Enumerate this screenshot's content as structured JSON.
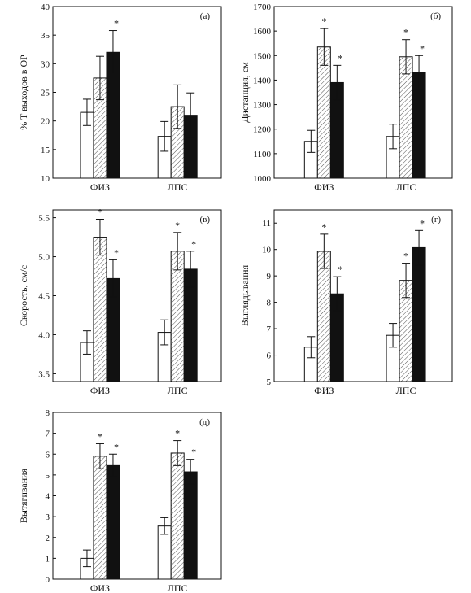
{
  "colors": {
    "series": [
      "#ffffff",
      "hatch",
      "#111111"
    ],
    "stroke": "#111111"
  },
  "chart_data": [
    {
      "type": "bar",
      "panel_label": "(а)",
      "ylabel": "% T выходов в ОР",
      "ylim": [
        10,
        40
      ],
      "yticks": [
        10,
        15,
        20,
        25,
        30,
        35,
        40
      ],
      "categories": [
        "ФИЗ",
        "ЛПС"
      ],
      "series": [
        {
          "values": [
            21.5,
            17.3
          ],
          "errors": [
            2.3,
            2.6
          ],
          "significant": [
            false,
            false
          ]
        },
        {
          "values": [
            27.5,
            22.5
          ],
          "errors": [
            3.8,
            3.8
          ],
          "significant": [
            false,
            false
          ]
        },
        {
          "values": [
            32.0,
            21.0
          ],
          "errors": [
            3.8,
            3.9
          ],
          "significant": [
            true,
            false
          ]
        }
      ]
    },
    {
      "type": "bar",
      "panel_label": "(б)",
      "ylabel": "Дистанция, см",
      "ylim": [
        1000,
        1700
      ],
      "yticks": [
        1000,
        1100,
        1200,
        1300,
        1400,
        1500,
        1600,
        1700
      ],
      "categories": [
        "ФИЗ",
        "ЛПС"
      ],
      "series": [
        {
          "values": [
            1150,
            1170
          ],
          "errors": [
            45,
            50
          ],
          "significant": [
            false,
            false
          ]
        },
        {
          "values": [
            1535,
            1495
          ],
          "errors": [
            75,
            70
          ],
          "significant": [
            true,
            true
          ]
        },
        {
          "values": [
            1390,
            1430
          ],
          "errors": [
            70,
            70
          ],
          "significant": [
            true,
            true
          ]
        }
      ]
    },
    {
      "type": "bar",
      "panel_label": "(в)",
      "ylabel": "Скорость, см/с",
      "ylim": [
        3.4,
        5.6
      ],
      "yticks": [
        3.5,
        4.0,
        4.5,
        5.0,
        5.5
      ],
      "tick_format": "fixed1",
      "categories": [
        "ФИЗ",
        "ЛПС"
      ],
      "series": [
        {
          "values": [
            3.9,
            4.03
          ],
          "errors": [
            0.15,
            0.16
          ],
          "significant": [
            false,
            false
          ]
        },
        {
          "values": [
            5.25,
            5.07
          ],
          "errors": [
            0.23,
            0.24
          ],
          "significant": [
            true,
            true
          ]
        },
        {
          "values": [
            4.72,
            4.84
          ],
          "errors": [
            0.24,
            0.23
          ],
          "significant": [
            true,
            true
          ]
        }
      ]
    },
    {
      "type": "bar",
      "panel_label": "(г)",
      "ylabel": "Выглядывания",
      "ylim": [
        5,
        11.5
      ],
      "yticks": [
        5,
        6,
        7,
        8,
        9,
        10,
        11
      ],
      "categories": [
        "ФИЗ",
        "ЛПС"
      ],
      "series": [
        {
          "values": [
            6.3,
            6.75
          ],
          "errors": [
            0.4,
            0.45
          ],
          "significant": [
            false,
            false
          ]
        },
        {
          "values": [
            9.93,
            8.83
          ],
          "errors": [
            0.65,
            0.65
          ],
          "significant": [
            true,
            true
          ]
        },
        {
          "values": [
            8.32,
            10.07
          ],
          "errors": [
            0.65,
            0.65
          ],
          "significant": [
            true,
            true
          ]
        }
      ]
    },
    {
      "type": "bar",
      "panel_label": "(д)",
      "ylabel": "Вытягивания",
      "ylim": [
        0,
        8
      ],
      "yticks": [
        0,
        1,
        2,
        3,
        4,
        5,
        6,
        7,
        8
      ],
      "categories": [
        "ФИЗ",
        "ЛПС"
      ],
      "series": [
        {
          "values": [
            1.0,
            2.55
          ],
          "errors": [
            0.4,
            0.4
          ],
          "significant": [
            false,
            false
          ]
        },
        {
          "values": [
            5.9,
            6.05
          ],
          "errors": [
            0.6,
            0.6
          ],
          "significant": [
            true,
            true
          ]
        },
        {
          "values": [
            5.45,
            5.15
          ],
          "errors": [
            0.55,
            0.6
          ],
          "significant": [
            true,
            true
          ]
        }
      ]
    }
  ]
}
